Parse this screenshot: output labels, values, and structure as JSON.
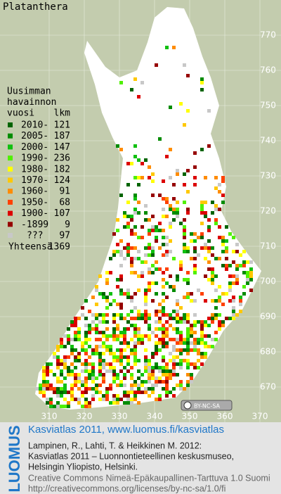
{
  "title": "Platanthera",
  "legend": {
    "heading": [
      "Uusimman",
      "havainnon"
    ],
    "col_year": "vuosi",
    "col_count": "lkm",
    "rows": [
      {
        "label": "2010-",
        "count": 121,
        "color": "#006400"
      },
      {
        "label": "2005-",
        "count": 187,
        "color": "#008c00"
      },
      {
        "label": "2000-",
        "count": 147,
        "color": "#10c010"
      },
      {
        "label": "1990-",
        "count": 236,
        "color": "#50f000"
      },
      {
        "label": "1980-",
        "count": 182,
        "color": "#ffff00"
      },
      {
        "label": "1970-",
        "count": 124,
        "color": "#ffc800"
      },
      {
        "label": "1960-",
        "count": 91,
        "color": "#ff8c00"
      },
      {
        "label": "1950-",
        "count": 68,
        "color": "#ff4000"
      },
      {
        "label": "1900-",
        "count": 107,
        "color": "#dc0000"
      },
      {
        "label": "-1899",
        "count": 9,
        "color": "#960000"
      },
      {
        "label": "???",
        "count": 97,
        "color": "#c8c8c8"
      }
    ],
    "total_label": "Yhteensä",
    "total": 1369
  },
  "grid": {
    "xlim": [
      296,
      376
    ],
    "ylim": [
      660,
      780
    ],
    "xticks": [
      310,
      320,
      330,
      340,
      350,
      360,
      370
    ],
    "yticks": [
      770,
      760,
      750,
      740,
      730,
      720,
      710,
      700,
      690,
      680,
      670
    ]
  },
  "cc_badge": "BY-NC-SA",
  "footer": {
    "logo": "LUOMUS",
    "headline": "Kasviatlas 2011, www.luomus.fi/kasviatlas",
    "lines": [
      "Lampinen, R., Lahti, T. & Heikkinen M. 2012:",
      "Kasviatlas 2011 – Luonnontieteellinen keskusmuseo,",
      "Helsingin Yliopisto, Helsinki."
    ],
    "license": [
      "Creative Commons Nimeä-Epäkaupallinen-Tarttuva 1.0 Suomi",
      "http://creativecommons.org/licenses/by-nc-sa/1.0/fi"
    ]
  }
}
